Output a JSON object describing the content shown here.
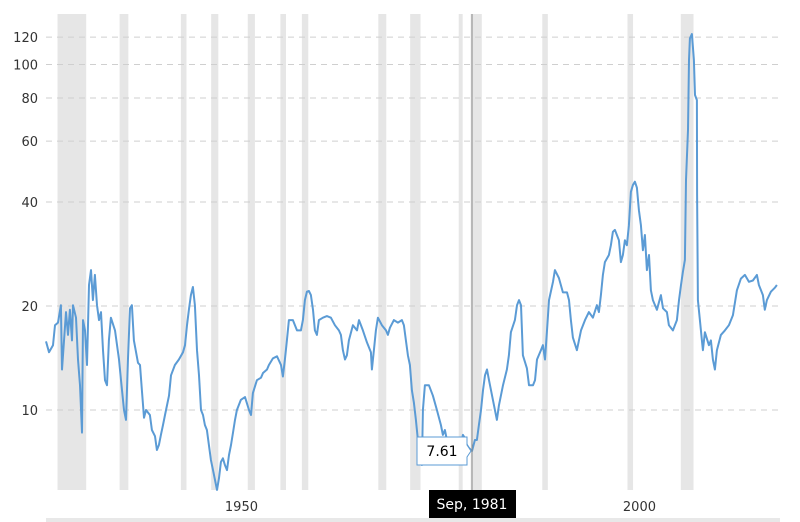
{
  "chart_data": {
    "type": "line",
    "title": "",
    "xlabel": "",
    "ylabel": "",
    "y_scale": "log",
    "ylim": [
      5.6,
      135
    ],
    "xlim": [
      1928.15,
      2020.1
    ],
    "y_ticks": [
      10,
      20,
      40,
      60,
      80,
      100,
      120
    ],
    "x_ticks": [
      1950,
      2000
    ],
    "grid": "horizontal dashed",
    "line_color": "#5b9bd5",
    "recession_color": "#e6e6e6",
    "recessions": [
      [
        1929.6,
        1933.2
      ],
      [
        1937.4,
        1938.5
      ],
      [
        1945.1,
        1945.8
      ],
      [
        1948.9,
        1949.8
      ],
      [
        1953.5,
        1954.4
      ],
      [
        1957.6,
        1958.3
      ],
      [
        1960.3,
        1961.1
      ],
      [
        1969.9,
        1970.9
      ],
      [
        1973.9,
        1975.2
      ],
      [
        1980.0,
        1980.5
      ],
      [
        1981.5,
        1982.9
      ],
      [
        1990.5,
        1991.2
      ],
      [
        2001.2,
        2001.9
      ],
      [
        2007.9,
        2009.5
      ]
    ],
    "tooltip": {
      "x": 1981.67,
      "value": "7.61",
      "date_label": "Sep, 1981"
    },
    "series": [
      {
        "points": [
          [
            1928.15,
            15.8
          ],
          [
            1928.53,
            14.7
          ],
          [
            1929.03,
            15.4
          ],
          [
            1929.28,
            17.6
          ],
          [
            1929.66,
            17.9
          ],
          [
            1930.03,
            20.1
          ],
          [
            1930.16,
            13.1
          ],
          [
            1930.66,
            19.2
          ],
          [
            1930.91,
            16.5
          ],
          [
            1931.16,
            19.5
          ],
          [
            1931.42,
            15.9
          ],
          [
            1931.54,
            20.1
          ],
          [
            1931.92,
            18.5
          ],
          [
            1932.17,
            14.0
          ],
          [
            1932.42,
            11.8
          ],
          [
            1932.67,
            8.6
          ],
          [
            1932.8,
            18.2
          ],
          [
            1933.05,
            17.0
          ],
          [
            1933.3,
            13.5
          ],
          [
            1933.55,
            23.0
          ],
          [
            1933.8,
            25.4
          ],
          [
            1934.05,
            20.8
          ],
          [
            1934.3,
            24.6
          ],
          [
            1934.56,
            20.1
          ],
          [
            1934.81,
            18.2
          ],
          [
            1935.06,
            19.2
          ],
          [
            1935.31,
            14.9
          ],
          [
            1935.56,
            12.2
          ],
          [
            1935.81,
            11.8
          ],
          [
            1936.06,
            15.9
          ],
          [
            1936.31,
            18.5
          ],
          [
            1936.82,
            17.0
          ],
          [
            1937.32,
            14.0
          ],
          [
            1937.57,
            12.2
          ],
          [
            1937.95,
            10.0
          ],
          [
            1938.2,
            9.36
          ],
          [
            1938.45,
            14.1
          ],
          [
            1938.7,
            19.7
          ],
          [
            1938.95,
            20.1
          ],
          [
            1939.2,
            15.9
          ],
          [
            1939.71,
            13.7
          ],
          [
            1939.96,
            13.5
          ],
          [
            1940.21,
            11.3
          ],
          [
            1940.46,
            9.5
          ],
          [
            1940.71,
            10.0
          ],
          [
            1941.21,
            9.67
          ],
          [
            1941.46,
            8.75
          ],
          [
            1941.84,
            8.4
          ],
          [
            1942.09,
            7.66
          ],
          [
            1942.34,
            7.92
          ],
          [
            1942.59,
            8.47
          ],
          [
            1942.85,
            9.05
          ],
          [
            1943.1,
            9.67
          ],
          [
            1943.6,
            11.0
          ],
          [
            1943.85,
            12.6
          ],
          [
            1944.35,
            13.5
          ],
          [
            1944.85,
            14.0
          ],
          [
            1945.36,
            14.7
          ],
          [
            1945.61,
            15.4
          ],
          [
            1945.86,
            17.6
          ],
          [
            1946.11,
            19.5
          ],
          [
            1946.36,
            21.5
          ],
          [
            1946.61,
            22.7
          ],
          [
            1946.86,
            20.1
          ],
          [
            1947.12,
            14.9
          ],
          [
            1947.37,
            12.6
          ],
          [
            1947.62,
            10.0
          ],
          [
            1947.87,
            9.67
          ],
          [
            1948.12,
            9.05
          ],
          [
            1948.37,
            8.75
          ],
          [
            1948.62,
            7.92
          ],
          [
            1948.87,
            7.17
          ],
          [
            1949.13,
            6.7
          ],
          [
            1949.38,
            6.27
          ],
          [
            1949.63,
            5.87
          ],
          [
            1949.88,
            6.35
          ],
          [
            1950.13,
            7.07
          ],
          [
            1950.38,
            7.25
          ],
          [
            1950.63,
            6.93
          ],
          [
            1950.89,
            6.7
          ],
          [
            1951.14,
            7.41
          ],
          [
            1951.39,
            7.92
          ],
          [
            1951.64,
            8.6
          ],
          [
            1951.89,
            9.36
          ],
          [
            1952.14,
            10.0
          ],
          [
            1952.64,
            10.7
          ],
          [
            1953.15,
            10.9
          ],
          [
            1953.65,
            10.0
          ],
          [
            1953.9,
            9.67
          ],
          [
            1954.15,
            11.2
          ],
          [
            1954.65,
            12.2
          ],
          [
            1955.16,
            12.4
          ],
          [
            1955.41,
            12.8
          ],
          [
            1955.91,
            13.1
          ],
          [
            1956.16,
            13.5
          ],
          [
            1956.66,
            14.1
          ],
          [
            1957.17,
            14.3
          ],
          [
            1957.67,
            13.5
          ],
          [
            1957.92,
            12.5
          ],
          [
            1958.17,
            14.0
          ],
          [
            1958.42,
            15.9
          ],
          [
            1958.67,
            18.2
          ],
          [
            1959.17,
            18.2
          ],
          [
            1959.68,
            17.0
          ],
          [
            1960.18,
            17.0
          ],
          [
            1960.43,
            18.2
          ],
          [
            1960.68,
            20.8
          ],
          [
            1960.93,
            22.0
          ],
          [
            1961.18,
            22.1
          ],
          [
            1961.43,
            21.5
          ],
          [
            1961.69,
            19.5
          ],
          [
            1961.94,
            17.0
          ],
          [
            1962.19,
            16.5
          ],
          [
            1962.44,
            18.2
          ],
          [
            1962.94,
            18.5
          ],
          [
            1963.44,
            18.7
          ],
          [
            1963.95,
            18.5
          ],
          [
            1964.45,
            17.6
          ],
          [
            1964.95,
            17.0
          ],
          [
            1965.2,
            16.5
          ],
          [
            1965.45,
            14.9
          ],
          [
            1965.71,
            14.0
          ],
          [
            1965.96,
            14.4
          ],
          [
            1966.21,
            15.9
          ],
          [
            1966.71,
            17.6
          ],
          [
            1967.22,
            17.0
          ],
          [
            1967.47,
            18.2
          ],
          [
            1967.97,
            17.0
          ],
          [
            1968.47,
            15.7
          ],
          [
            1968.97,
            14.7
          ],
          [
            1969.1,
            13.1
          ],
          [
            1969.35,
            14.9
          ],
          [
            1969.6,
            17.0
          ],
          [
            1969.85,
            18.5
          ],
          [
            1970.35,
            17.6
          ],
          [
            1970.86,
            17.0
          ],
          [
            1971.11,
            16.5
          ],
          [
            1971.36,
            17.3
          ],
          [
            1971.86,
            18.2
          ],
          [
            1972.36,
            17.9
          ],
          [
            1972.86,
            18.2
          ],
          [
            1973.12,
            17.6
          ],
          [
            1973.37,
            15.9
          ],
          [
            1973.62,
            14.4
          ],
          [
            1973.87,
            13.5
          ],
          [
            1974.12,
            11.4
          ],
          [
            1974.37,
            10.5
          ],
          [
            1974.62,
            9.36
          ],
          [
            1974.87,
            8.19
          ],
          [
            1975.12,
            7.66
          ],
          [
            1975.38,
            6.93
          ],
          [
            1975.5,
            10.0
          ],
          [
            1975.75,
            11.8
          ],
          [
            1976.25,
            11.8
          ],
          [
            1976.76,
            11.0
          ],
          [
            1977.26,
            10.0
          ],
          [
            1977.76,
            9.05
          ],
          [
            1978.01,
            8.47
          ],
          [
            1978.26,
            8.75
          ],
          [
            1978.77,
            7.66
          ],
          [
            1979.02,
            7.25
          ],
          [
            1979.27,
            7.77
          ],
          [
            1979.77,
            8.08
          ],
          [
            1980.02,
            7.56
          ],
          [
            1980.28,
            7.92
          ],
          [
            1980.53,
            8.47
          ],
          [
            1980.78,
            8.3
          ],
          [
            1981.03,
            7.92
          ],
          [
            1981.28,
            7.77
          ],
          [
            1981.67,
            7.61
          ],
          [
            1982.04,
            8.19
          ],
          [
            1982.29,
            8.19
          ],
          [
            1982.54,
            9.05
          ],
          [
            1982.8,
            10.0
          ],
          [
            1983.05,
            11.4
          ],
          [
            1983.3,
            12.6
          ],
          [
            1983.55,
            13.1
          ],
          [
            1983.8,
            12.2
          ],
          [
            1984.3,
            10.7
          ],
          [
            1984.8,
            9.36
          ],
          [
            1985.05,
            10.3
          ],
          [
            1985.56,
            11.8
          ],
          [
            1986.06,
            13.1
          ],
          [
            1986.31,
            14.4
          ],
          [
            1986.56,
            16.8
          ],
          [
            1987.06,
            18.2
          ],
          [
            1987.32,
            20.1
          ],
          [
            1987.57,
            20.8
          ],
          [
            1987.82,
            20.1
          ],
          [
            1988.07,
            14.4
          ],
          [
            1988.57,
            13.2
          ],
          [
            1988.83,
            11.8
          ],
          [
            1989.33,
            11.8
          ],
          [
            1989.58,
            12.2
          ],
          [
            1989.83,
            14.0
          ],
          [
            1990.33,
            14.9
          ],
          [
            1990.58,
            15.4
          ],
          [
            1990.84,
            14.0
          ],
          [
            1991.09,
            17.0
          ],
          [
            1991.34,
            20.8
          ],
          [
            1991.84,
            23.5
          ],
          [
            1992.09,
            25.4
          ],
          [
            1992.59,
            24.1
          ],
          [
            1993.09,
            21.9
          ],
          [
            1993.6,
            21.9
          ],
          [
            1993.85,
            20.8
          ],
          [
            1994.1,
            18.2
          ],
          [
            1994.35,
            16.2
          ],
          [
            1994.85,
            14.9
          ],
          [
            1995.36,
            17.0
          ],
          [
            1995.86,
            18.2
          ],
          [
            1996.36,
            19.2
          ],
          [
            1996.86,
            18.5
          ],
          [
            1997.36,
            20.1
          ],
          [
            1997.61,
            19.2
          ],
          [
            1997.86,
            21.5
          ],
          [
            1998.12,
            24.6
          ],
          [
            1998.37,
            26.8
          ],
          [
            1998.87,
            28.1
          ],
          [
            1999.12,
            30.0
          ],
          [
            1999.37,
            32.8
          ],
          [
            1999.62,
            33.2
          ],
          [
            2000.13,
            31.0
          ],
          [
            2000.38,
            26.8
          ],
          [
            2000.63,
            28.1
          ],
          [
            2000.88,
            31.0
          ],
          [
            2001.13,
            30.0
          ],
          [
            2001.38,
            34.3
          ],
          [
            2001.63,
            42.8
          ],
          [
            2001.88,
            44.8
          ],
          [
            2002.14,
            45.8
          ],
          [
            2002.39,
            44.0
          ],
          [
            2002.64,
            37.9
          ],
          [
            2002.89,
            34.3
          ],
          [
            2003.14,
            29.0
          ],
          [
            2003.39,
            32.1
          ],
          [
            2003.64,
            25.4
          ],
          [
            2003.9,
            28.1
          ],
          [
            2004.15,
            22.2
          ],
          [
            2004.4,
            20.8
          ],
          [
            2004.9,
            19.5
          ],
          [
            2005.4,
            21.5
          ],
          [
            2005.66,
            19.7
          ],
          [
            2006.16,
            19.2
          ],
          [
            2006.41,
            17.6
          ],
          [
            2006.91,
            17.0
          ],
          [
            2007.41,
            18.2
          ],
          [
            2007.67,
            20.8
          ],
          [
            2007.92,
            23.0
          ],
          [
            2008.17,
            25.1
          ],
          [
            2008.42,
            27.2
          ],
          [
            2008.55,
            46.3
          ],
          [
            2008.8,
            64.6
          ],
          [
            2008.93,
            103
          ],
          [
            2009.05,
            119
          ],
          [
            2009.3,
            122.5
          ],
          [
            2009.55,
            103
          ],
          [
            2009.68,
            81.6
          ],
          [
            2009.93,
            78.9
          ],
          [
            2009.95,
            41.9
          ],
          [
            2010.05,
            20.8
          ],
          [
            2010.3,
            18.2
          ],
          [
            2010.55,
            15.9
          ],
          [
            2010.68,
            14.9
          ],
          [
            2010.93,
            16.8
          ],
          [
            2011.43,
            15.4
          ],
          [
            2011.68,
            15.9
          ],
          [
            2011.93,
            14.0
          ],
          [
            2012.19,
            13.1
          ],
          [
            2012.44,
            14.9
          ],
          [
            2012.94,
            16.5
          ],
          [
            2013.44,
            17.0
          ],
          [
            2013.94,
            17.6
          ],
          [
            2014.45,
            18.8
          ],
          [
            2014.95,
            22.2
          ],
          [
            2015.45,
            24.0
          ],
          [
            2015.95,
            24.6
          ],
          [
            2016.46,
            23.5
          ],
          [
            2016.96,
            23.7
          ],
          [
            2017.46,
            24.6
          ],
          [
            2017.71,
            23.0
          ],
          [
            2018.21,
            21.5
          ],
          [
            2018.46,
            19.5
          ],
          [
            2018.72,
            20.8
          ],
          [
            2019.22,
            22.0
          ],
          [
            2019.72,
            22.6
          ],
          [
            2019.97,
            23.0
          ]
        ]
      }
    ]
  }
}
